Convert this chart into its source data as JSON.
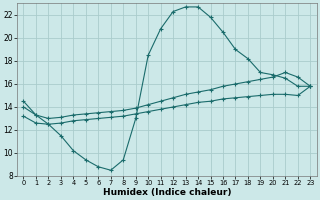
{
  "xlabel": "Humidex (Indice chaleur)",
  "bg_color": "#cce8e8",
  "grid_color": "#aacccc",
  "line_color": "#1a6b6b",
  "xlim": [
    -0.5,
    23.5
  ],
  "ylim": [
    8,
    23
  ],
  "xticks": [
    0,
    1,
    2,
    3,
    4,
    5,
    6,
    7,
    8,
    9,
    10,
    11,
    12,
    13,
    14,
    15,
    16,
    17,
    18,
    19,
    20,
    21,
    22,
    23
  ],
  "yticks": [
    8,
    10,
    12,
    14,
    16,
    18,
    20,
    22
  ],
  "line1_x": [
    0,
    1,
    2,
    3,
    4,
    5,
    6,
    7,
    8,
    9,
    10,
    11,
    12,
    13,
    14,
    15,
    16,
    17,
    18,
    19,
    20,
    21,
    22,
    23
  ],
  "line1_y": [
    14.5,
    13.3,
    12.5,
    11.5,
    10.2,
    9.4,
    8.8,
    8.5,
    9.4,
    13.0,
    18.5,
    20.8,
    22.3,
    22.7,
    22.7,
    21.8,
    20.5,
    19.0,
    18.2,
    17.0,
    16.8,
    16.5,
    15.8,
    15.8
  ],
  "line2_x": [
    0,
    1,
    2,
    3,
    4,
    5,
    6,
    7,
    8,
    9,
    10,
    11,
    12,
    13,
    14,
    15,
    16,
    17,
    18,
    19,
    20,
    21,
    22,
    23
  ],
  "line2_y": [
    14.0,
    13.3,
    13.0,
    13.1,
    13.3,
    13.4,
    13.5,
    13.6,
    13.7,
    13.9,
    14.2,
    14.5,
    14.8,
    15.1,
    15.3,
    15.5,
    15.8,
    16.0,
    16.2,
    16.4,
    16.6,
    17.0,
    16.6,
    15.8
  ],
  "line3_x": [
    0,
    1,
    2,
    3,
    4,
    5,
    6,
    7,
    8,
    9,
    10,
    11,
    12,
    13,
    14,
    15,
    16,
    17,
    18,
    19,
    20,
    21,
    22,
    23
  ],
  "line3_y": [
    13.2,
    12.6,
    12.5,
    12.6,
    12.8,
    12.9,
    13.0,
    13.1,
    13.2,
    13.4,
    13.6,
    13.8,
    14.0,
    14.2,
    14.4,
    14.5,
    14.7,
    14.8,
    14.9,
    15.0,
    15.1,
    15.1,
    15.0,
    15.8
  ]
}
